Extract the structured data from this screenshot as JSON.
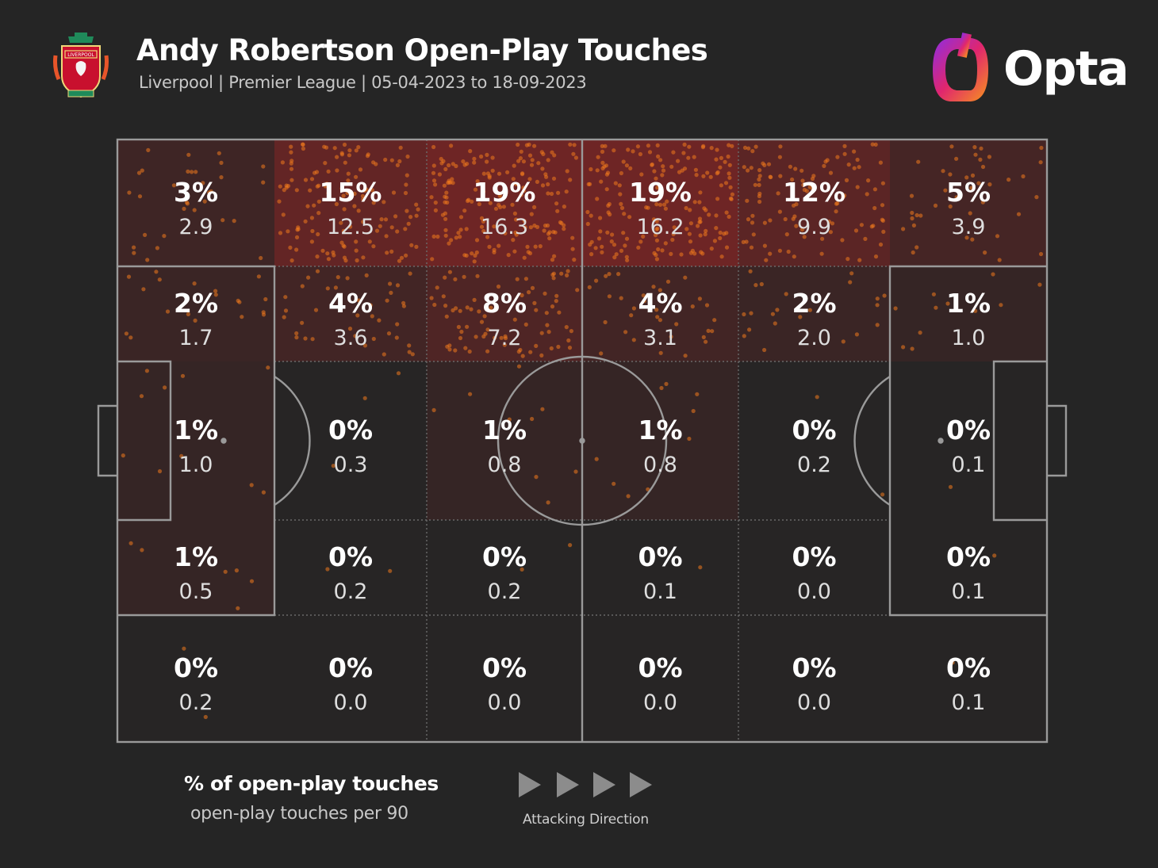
{
  "header": {
    "title": "Andy Robertson Open-Play Touches",
    "subtitle": "Liverpool | Premier League | 05-04-2023 to 18-09-2023",
    "brand": "Opta",
    "crest_text": "LIVERPOOL"
  },
  "legend": {
    "percent_label": "% of open-play touches",
    "per90_label": "open-play touches per 90",
    "direction_label": "Attacking Direction"
  },
  "colors": {
    "background": "#252525",
    "heat": "#b02626",
    "dot": "#f07a1e",
    "lines": "#8f8f8f"
  },
  "chart_data": {
    "type": "heatmap",
    "title": "Andy Robertson Open-Play Touches",
    "columns": 6,
    "rows": 5,
    "cells": [
      [
        {
          "pct": "3%",
          "per90": "2.9",
          "share": 3
        },
        {
          "pct": "15%",
          "per90": "12.5",
          "share": 15
        },
        {
          "pct": "19%",
          "per90": "16.3",
          "share": 19
        },
        {
          "pct": "19%",
          "per90": "16.2",
          "share": 19
        },
        {
          "pct": "12%",
          "per90": "9.9",
          "share": 12
        },
        {
          "pct": "5%",
          "per90": "3.9",
          "share": 5
        }
      ],
      [
        {
          "pct": "2%",
          "per90": "1.7",
          "share": 2
        },
        {
          "pct": "4%",
          "per90": "3.6",
          "share": 4
        },
        {
          "pct": "8%",
          "per90": "7.2",
          "share": 8
        },
        {
          "pct": "4%",
          "per90": "3.1",
          "share": 4
        },
        {
          "pct": "2%",
          "per90": "2.0",
          "share": 2
        },
        {
          "pct": "1%",
          "per90": "1.0",
          "share": 1
        }
      ],
      [
        {
          "pct": "1%",
          "per90": "1.0",
          "share": 1
        },
        {
          "pct": "0%",
          "per90": "0.3",
          "share": 0
        },
        {
          "pct": "1%",
          "per90": "0.8",
          "share": 1
        },
        {
          "pct": "1%",
          "per90": "0.8",
          "share": 1
        },
        {
          "pct": "0%",
          "per90": "0.2",
          "share": 0
        },
        {
          "pct": "0%",
          "per90": "0.1",
          "share": 0
        }
      ],
      [
        {
          "pct": "1%",
          "per90": "0.5",
          "share": 1
        },
        {
          "pct": "0%",
          "per90": "0.2",
          "share": 0
        },
        {
          "pct": "0%",
          "per90": "0.2",
          "share": 0
        },
        {
          "pct": "0%",
          "per90": "0.1",
          "share": 0
        },
        {
          "pct": "0%",
          "per90": "0.0",
          "share": 0
        },
        {
          "pct": "0%",
          "per90": "0.1",
          "share": 0
        }
      ],
      [
        {
          "pct": "0%",
          "per90": "0.2",
          "share": 0
        },
        {
          "pct": "0%",
          "per90": "0.0",
          "share": 0
        },
        {
          "pct": "0%",
          "per90": "0.0",
          "share": 0
        },
        {
          "pct": "0%",
          "per90": "0.0",
          "share": 0
        },
        {
          "pct": "0%",
          "per90": "0.0",
          "share": 0
        },
        {
          "pct": "0%",
          "per90": "0.1",
          "share": 0
        }
      ]
    ]
  }
}
